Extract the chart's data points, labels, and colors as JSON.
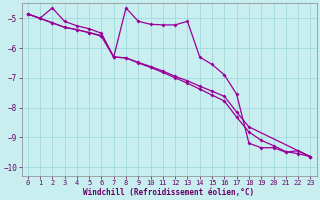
{
  "xlabel": "Windchill (Refroidissement éolien,°C)",
  "background_color": "#c8eef0",
  "grid_color": "#a0d8dc",
  "line_color": "#990099",
  "xlim": [
    -0.5,
    23.5
  ],
  "ylim": [
    -10.3,
    -4.5
  ],
  "yticks": [
    -10,
    -9,
    -8,
    -7,
    -6,
    -5
  ],
  "xticks": [
    0,
    1,
    2,
    3,
    4,
    5,
    6,
    7,
    8,
    9,
    10,
    11,
    12,
    13,
    14,
    15,
    16,
    17,
    18,
    19,
    20,
    21,
    22,
    23
  ],
  "series1_x": [
    0,
    1,
    2,
    3,
    4,
    5,
    6,
    7,
    8,
    9,
    10,
    11,
    12,
    13,
    14,
    15,
    16,
    17,
    18,
    19,
    20,
    21,
    22,
    23
  ],
  "series1_y": [
    -4.85,
    -5.0,
    -4.65,
    -5.1,
    -5.25,
    -5.35,
    -5.5,
    -6.3,
    -4.65,
    -5.1,
    -5.2,
    -5.22,
    -5.22,
    -5.1,
    -6.3,
    -6.55,
    -6.9,
    -7.55,
    -9.2,
    -9.35,
    -9.35,
    -9.5,
    -9.45,
    -9.65
  ],
  "series2_x": [
    0,
    1,
    2,
    3,
    4,
    5,
    6,
    7,
    8,
    9,
    10,
    11,
    12,
    13,
    14,
    15,
    16,
    17,
    18,
    23
  ],
  "series2_y": [
    -4.85,
    -5.0,
    -5.15,
    -5.3,
    -5.38,
    -5.48,
    -5.58,
    -6.3,
    -6.33,
    -6.48,
    -6.62,
    -6.77,
    -6.95,
    -7.1,
    -7.28,
    -7.45,
    -7.62,
    -8.15,
    -8.65,
    -9.65
  ],
  "series3_x": [
    0,
    1,
    2,
    3,
    4,
    5,
    6,
    7,
    8,
    9,
    10,
    11,
    12,
    13,
    14,
    15,
    16,
    17,
    18,
    19,
    20,
    21,
    22,
    23
  ],
  "series3_y": [
    -4.85,
    -5.0,
    -5.15,
    -5.3,
    -5.38,
    -5.48,
    -5.6,
    -6.3,
    -6.33,
    -6.5,
    -6.65,
    -6.82,
    -7.0,
    -7.18,
    -7.38,
    -7.58,
    -7.78,
    -8.32,
    -8.82,
    -9.1,
    -9.28,
    -9.48,
    -9.55,
    -9.65
  ]
}
